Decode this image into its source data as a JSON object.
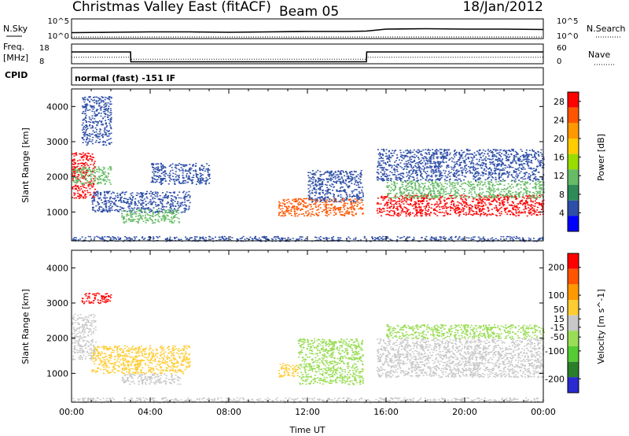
{
  "title": {
    "station": "Christmas Valley East (fitACF)",
    "beam": "Beam 05",
    "date": "18/Jan/2012"
  },
  "mode_label": "normal (fast) -151 IF",
  "labels": {
    "nsky": "N.Sky",
    "nsearch": "N.Search",
    "freq": "Freq.",
    "freq_unit": "[MHz]",
    "nave": "Nave",
    "cpid": "CPID",
    "log_top": "10^5",
    "log_bottom": "10^0"
  },
  "colors": {
    "power": [
      "#0000ff",
      "#2e4fa8",
      "#2e8b57",
      "#66bb66",
      "#99dd00",
      "#ffcc00",
      "#ff9900",
      "#ff5500",
      "#ff0000"
    ],
    "velocity": [
      "#2a2ad0",
      "#2a7f2a",
      "#55cc33",
      "#99dd55",
      "#c8c8c8",
      "#ffcc33",
      "#ff9900",
      "#ff5500",
      "#ff0000"
    ]
  },
  "chart_data": [
    {
      "type": "line",
      "name": "noise-panel",
      "x": [
        "00:00",
        "02:00",
        "04:00",
        "06:00",
        "08:00",
        "10:00",
        "12:00",
        "14:00",
        "15:00",
        "16:00",
        "18:00",
        "20:00",
        "22:00",
        "24:00"
      ],
      "series": [
        {
          "name": "N.Sky",
          "values": [
            1.5,
            1.6,
            1.7,
            1.7,
            1.6,
            1.7,
            1.8,
            1.8,
            1.9,
            2.4,
            2.5,
            2.4,
            2.4,
            2.3
          ]
        },
        {
          "name": "N.Search",
          "values": [
            0.1,
            0.1,
            0.1,
            0.1,
            0.1,
            0.1,
            0.1,
            0.1,
            0.1,
            0.1,
            0.1,
            0.1,
            0.1,
            0.1
          ]
        }
      ],
      "ylim": [
        0,
        5
      ],
      "yticks_left": [
        "10^5",
        "10^0"
      ],
      "yticks_right": [
        "10^5",
        "10^0"
      ]
    },
    {
      "type": "line",
      "name": "freq-panel",
      "x": [
        "00:00",
        "03:00",
        "03:01",
        "15:00",
        "15:01",
        "24:00"
      ],
      "series": [
        {
          "name": "Freq.",
          "values": [
            14,
            14,
            9,
            9,
            14,
            14
          ]
        },
        {
          "name": "Nave",
          "values": [
            20,
            20,
            14,
            14,
            20,
            20
          ]
        }
      ],
      "ylim_left": [
        8,
        18
      ],
      "ylim_right": [
        0,
        60
      ],
      "yticks_left": [
        "18",
        "8"
      ],
      "yticks_right": [
        "60",
        "0"
      ]
    },
    {
      "type": "heatmap",
      "name": "power",
      "xlabel": "",
      "ylabel": "Slant Range [km]",
      "xlim": [
        0,
        24
      ],
      "ylim": [
        180,
        4500
      ],
      "yticks": [
        1000,
        2000,
        3000,
        4000
      ],
      "colorbar": {
        "label": "Power [dB]",
        "ticks": [
          4,
          8,
          12,
          16,
          20,
          24,
          28
        ],
        "range": [
          0,
          30
        ]
      },
      "regions": [
        {
          "t0": 0.0,
          "t1": 1.2,
          "r0": 1400,
          "r1": 2700,
          "level": 28
        },
        {
          "t0": 0.0,
          "t1": 2.0,
          "r0": 1800,
          "r1": 2300,
          "level": 10
        },
        {
          "t0": 0.5,
          "t1": 2.0,
          "r0": 2900,
          "r1": 4300,
          "level": 5
        },
        {
          "t0": 1.0,
          "t1": 6.0,
          "r0": 1000,
          "r1": 1600,
          "level": 6
        },
        {
          "t0": 2.5,
          "t1": 5.5,
          "r0": 700,
          "r1": 1100,
          "level": 10
        },
        {
          "t0": 4.0,
          "t1": 7.0,
          "r0": 1800,
          "r1": 2400,
          "level": 4
        },
        {
          "t0": 10.5,
          "t1": 14.8,
          "r0": 900,
          "r1": 1400,
          "level": 26
        },
        {
          "t0": 12.0,
          "t1": 14.8,
          "r0": 1300,
          "r1": 2200,
          "level": 5
        },
        {
          "t0": 15.5,
          "t1": 24.0,
          "r0": 900,
          "r1": 1500,
          "level": 28
        },
        {
          "t0": 16.0,
          "t1": 24.0,
          "r0": 1400,
          "r1": 1900,
          "level": 12
        },
        {
          "t0": 15.5,
          "t1": 24.0,
          "r0": 1900,
          "r1": 2800,
          "level": 4
        },
        {
          "t0": 0.0,
          "t1": 24.0,
          "r0": 180,
          "r1": 320,
          "level": 4
        }
      ]
    },
    {
      "type": "heatmap",
      "name": "velocity",
      "xlabel": "Time UT",
      "ylabel": "Slant Range [km]",
      "xlim": [
        0,
        24
      ],
      "ylim": [
        180,
        4500
      ],
      "xticks": [
        "00:00",
        "04:00",
        "08:00",
        "12:00",
        "16:00",
        "20:00",
        "00:00"
      ],
      "yticks": [
        1000,
        2000,
        3000,
        4000
      ],
      "colorbar": {
        "label": "Velocity [m s^-1]",
        "ticks": [
          200,
          100,
          50,
          15,
          -15,
          -50,
          -100,
          -200
        ],
        "range": [
          -250,
          250
        ]
      },
      "regions": [
        {
          "t0": 0.0,
          "t1": 1.2,
          "r0": 1400,
          "r1": 2700,
          "level": 0
        },
        {
          "t0": 0.5,
          "t1": 2.0,
          "r0": 3000,
          "r1": 3300,
          "level": 200
        },
        {
          "t0": 1.0,
          "t1": 6.0,
          "r0": 1000,
          "r1": 1800,
          "level": 40
        },
        {
          "t0": 2.5,
          "t1": 5.5,
          "r0": 700,
          "r1": 1000,
          "level": 0
        },
        {
          "t0": 10.5,
          "t1": 11.5,
          "r0": 900,
          "r1": 1300,
          "level": 40
        },
        {
          "t0": 11.5,
          "t1": 14.8,
          "r0": 700,
          "r1": 2000,
          "level": -60
        },
        {
          "t0": 15.5,
          "t1": 24.0,
          "r0": 900,
          "r1": 2000,
          "level": 0
        },
        {
          "t0": 16.0,
          "t1": 24.0,
          "r0": 2000,
          "r1": 2400,
          "level": -40
        },
        {
          "t0": 0.0,
          "t1": 24.0,
          "r0": 180,
          "r1": 320,
          "level": 20
        }
      ]
    }
  ]
}
